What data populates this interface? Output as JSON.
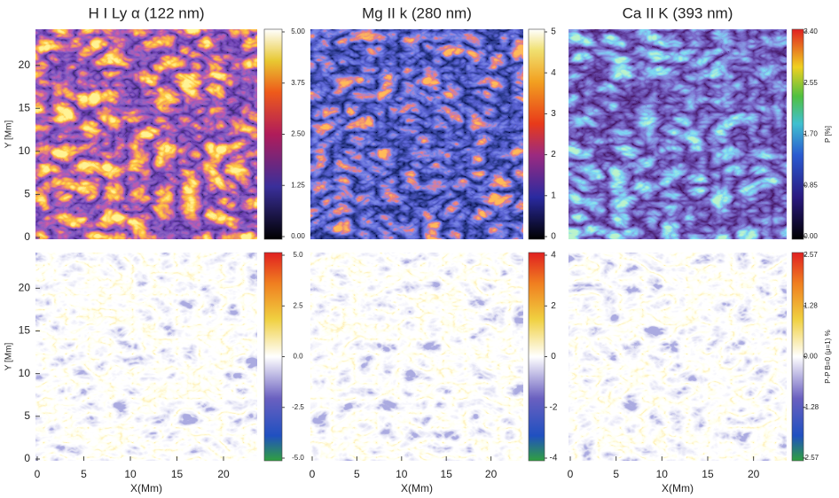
{
  "columns": [
    {
      "title": "H I Ly α (122 nm)",
      "top_colorbar_ticks": [
        "0.00",
        "1.25",
        "2.50",
        "3.75",
        "5.00"
      ],
      "bottom_colorbar_ticks": [
        "-5.0",
        "-2.5",
        "0.0",
        "2.5",
        "5.0"
      ]
    },
    {
      "title": "Mg II k (280 nm)",
      "top_colorbar_ticks": [
        "0",
        "1",
        "2",
        "3",
        "4",
        "5"
      ],
      "bottom_colorbar_ticks": [
        "-4",
        "-2",
        "0",
        "2",
        "4"
      ]
    },
    {
      "title": "Ca II K (393 nm)",
      "top_colorbar_ticks": [
        "0.00",
        "0.85",
        "1.70",
        "2.55",
        "3.40"
      ],
      "top_colorbar_label": "P [%]",
      "bottom_colorbar_ticks": [
        "-2.57",
        "-1.28",
        "0.00",
        "1.28",
        "2.57"
      ],
      "bottom_colorbar_label": "P-P B=0 (μ=1) %"
    }
  ],
  "y_axis_label_top": "Y [Mm]",
  "y_axis_label_bottom": "Y [Mm]",
  "y_ticks": [
    "0",
    "5",
    "10",
    "15",
    "20"
  ],
  "x_ticks": [
    "0",
    "5",
    "10",
    "15",
    "20"
  ],
  "x_axis_label": "X(Mm)"
}
